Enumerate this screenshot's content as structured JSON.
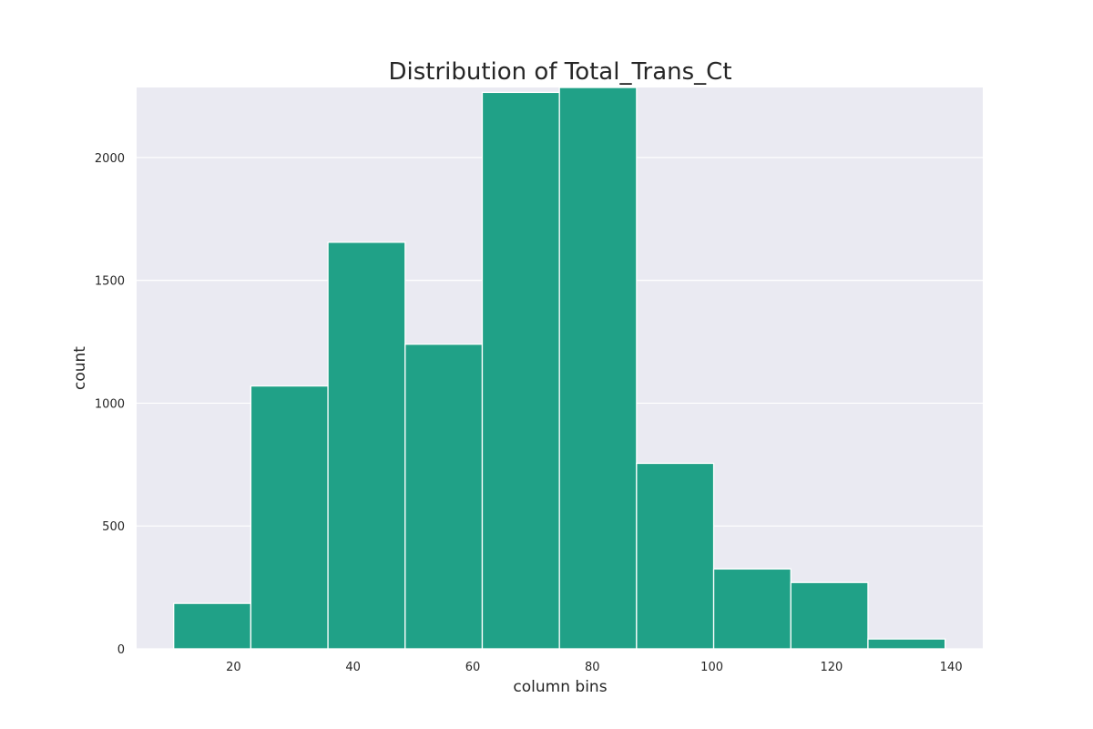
{
  "chart_data": {
    "type": "bar",
    "title": "Distribution of Total_Trans_Ct",
    "xlabel": "column bins",
    "ylabel": "count",
    "bin_edges": [
      10,
      22.9,
      35.8,
      48.7,
      61.6,
      74.5,
      87.4,
      100.3,
      113.2,
      126.1,
      139
    ],
    "values": [
      185,
      1070,
      1655,
      1240,
      2265,
      2285,
      755,
      325,
      270,
      40
    ],
    "xlim": [
      3.8,
      145.3
    ],
    "ylim": [
      0,
      2285
    ],
    "x_ticks": [
      20,
      40,
      60,
      80,
      100,
      120,
      140
    ],
    "y_ticks": [
      0,
      500,
      1000,
      1500,
      2000
    ],
    "grid": true,
    "colors": {
      "bar": "#20a187",
      "background": "#eaeaf2",
      "grid": "#ffffff"
    }
  }
}
